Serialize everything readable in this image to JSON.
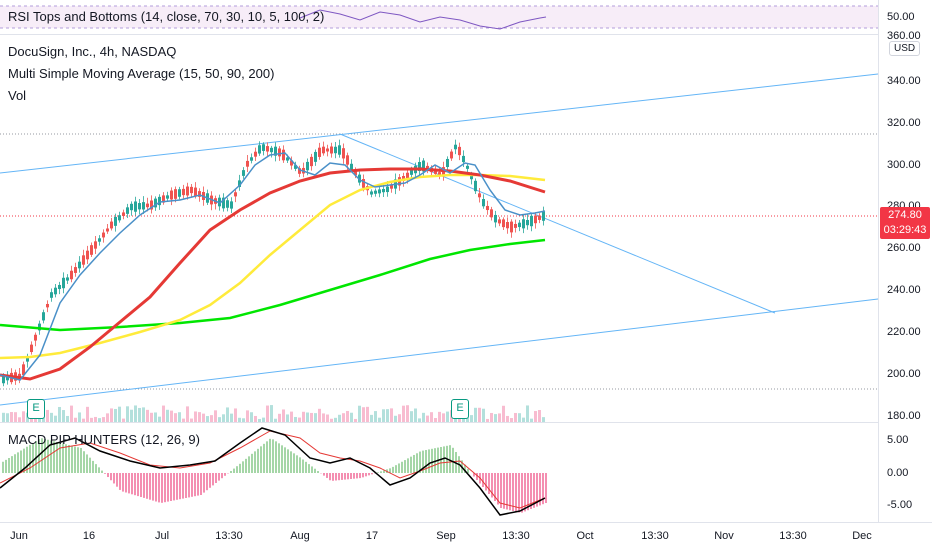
{
  "rsi_pane": {
    "legend": "RSI Tops and Bottoms (14, close, 70, 30, 10, 5, 100, 2)",
    "scale_label": "50.00"
  },
  "main_pane": {
    "symbol_line": "DocuSign, Inc., 4h, NASDAQ",
    "indicator_ma": "Multi Simple Moving Average (15, 50, 90, 200)",
    "indicator_vol": "Vol",
    "currency": "USD",
    "price_ticks": [
      "360.00",
      "340.00",
      "320.00",
      "300.00",
      "280.00",
      "260.00",
      "240.00",
      "220.00",
      "200.00",
      "180.00"
    ],
    "last_price": "274.80",
    "countdown": "03:29:43",
    "earnings_marker": "E",
    "colors": {
      "ma15": "#4a90c8",
      "ma50": "#e53935",
      "ma90": "#ffeb3b",
      "ma200": "#00e600",
      "trendline": "#64b5f6",
      "up_candle": "#26a69a",
      "down_candle": "#ef5350",
      "last_price_tag": "#f23645"
    }
  },
  "macd_pane": {
    "legend": "MACD PIP HUNTERS (12, 26, 9)",
    "ticks": [
      "5.00",
      "0.00",
      "-5.00"
    ]
  },
  "date_axis": [
    "Jun",
    "16",
    "Jul",
    "13:30",
    "Aug",
    "17",
    "Sep",
    "13:30",
    "Oct",
    "13:30",
    "Nov",
    "13:30",
    "Dec"
  ]
}
